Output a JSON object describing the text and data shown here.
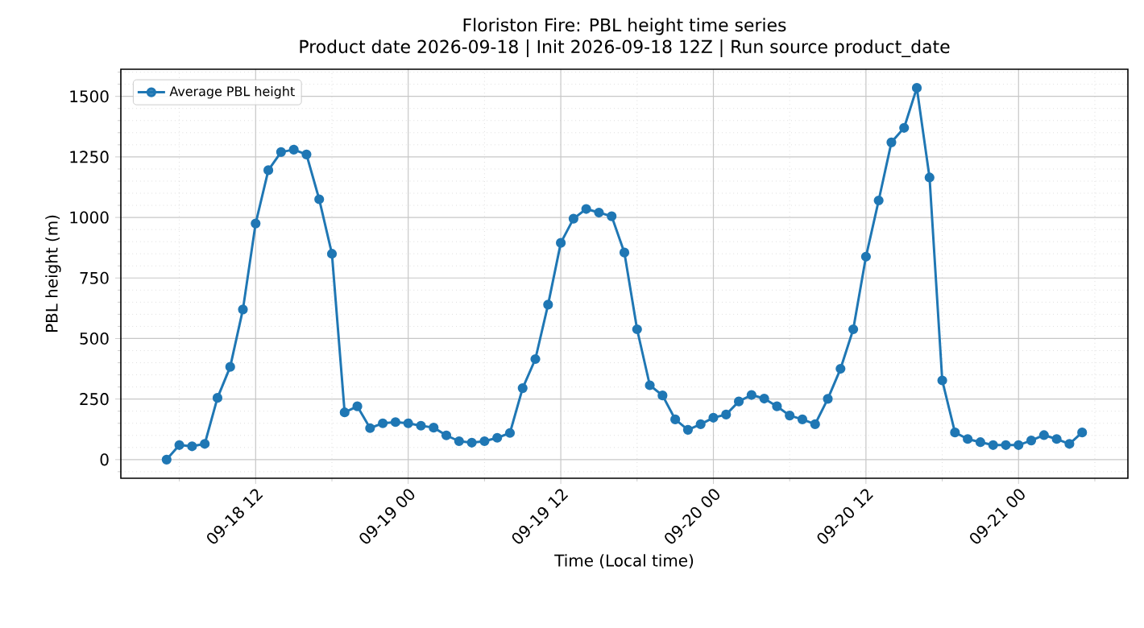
{
  "chart_data": {
    "type": "line",
    "title": "Floriston Fire: PBL height time series",
    "subtitle": "Product date 2026-09-18 | Init 2026-09-18 12Z | Run source product_date",
    "xlabel": "Time (Local time)",
    "ylabel": "PBL height (m)",
    "x": [
      "2026-09-18T05:00",
      "2026-09-18T06:00",
      "2026-09-18T07:00",
      "2026-09-18T08:00",
      "2026-09-18T09:00",
      "2026-09-18T10:00",
      "2026-09-18T11:00",
      "2026-09-18T12:00",
      "2026-09-18T13:00",
      "2026-09-18T14:00",
      "2026-09-18T15:00",
      "2026-09-18T16:00",
      "2026-09-18T17:00",
      "2026-09-18T18:00",
      "2026-09-18T19:00",
      "2026-09-18T20:00",
      "2026-09-18T21:00",
      "2026-09-18T22:00",
      "2026-09-18T23:00",
      "2026-09-19T00:00",
      "2026-09-19T01:00",
      "2026-09-19T02:00",
      "2026-09-19T03:00",
      "2026-09-19T04:00",
      "2026-09-19T05:00",
      "2026-09-19T06:00",
      "2026-09-19T07:00",
      "2026-09-19T08:00",
      "2026-09-19T09:00",
      "2026-09-19T10:00",
      "2026-09-19T11:00",
      "2026-09-19T12:00",
      "2026-09-19T13:00",
      "2026-09-19T14:00",
      "2026-09-19T15:00",
      "2026-09-19T16:00",
      "2026-09-19T17:00",
      "2026-09-19T18:00",
      "2026-09-19T19:00",
      "2026-09-19T20:00",
      "2026-09-19T21:00",
      "2026-09-19T22:00",
      "2026-09-19T23:00",
      "2026-09-20T00:00",
      "2026-09-20T01:00",
      "2026-09-20T02:00",
      "2026-09-20T03:00",
      "2026-09-20T04:00",
      "2026-09-20T05:00",
      "2026-09-20T06:00",
      "2026-09-20T07:00",
      "2026-09-20T08:00",
      "2026-09-20T09:00",
      "2026-09-20T10:00",
      "2026-09-20T11:00",
      "2026-09-20T12:00",
      "2026-09-20T13:00",
      "2026-09-20T14:00",
      "2026-09-20T15:00",
      "2026-09-20T16:00",
      "2026-09-20T17:00",
      "2026-09-20T18:00",
      "2026-09-20T19:00",
      "2026-09-20T20:00",
      "2026-09-20T21:00",
      "2026-09-20T22:00",
      "2026-09-20T23:00",
      "2026-09-21T00:00",
      "2026-09-21T01:00",
      "2026-09-21T02:00",
      "2026-09-21T03:00",
      "2026-09-21T04:00",
      "2026-09-21T05:00"
    ],
    "series": [
      {
        "name": "Average PBL height",
        "color": "#1f77b4",
        "values": [
          0,
          60,
          55,
          65,
          255,
          383,
          620,
          975,
          1195,
          1270,
          1280,
          1260,
          1075,
          850,
          195,
          220,
          130,
          150,
          155,
          150,
          140,
          132,
          100,
          76,
          70,
          76,
          90,
          110,
          295,
          415,
          640,
          895,
          995,
          1035,
          1020,
          1005,
          855,
          538,
          307,
          265,
          166,
          123,
          146,
          173,
          186,
          240,
          267,
          252,
          220,
          182,
          166,
          146,
          251,
          375,
          538,
          838,
          1070,
          1310,
          1370,
          1535,
          1165,
          327,
          112,
          85,
          72,
          60,
          60,
          60,
          79,
          101,
          85,
          65,
          112
        ]
      }
    ],
    "xlim": [
      "2026-09-18T01:24",
      "2026-09-21T08:36"
    ],
    "xticks": [
      {
        "value": "2026-09-18T06:00",
        "label": null
      },
      {
        "value": "2026-09-18T12:00",
        "label": "09-18 12"
      },
      {
        "value": "2026-09-18T18:00",
        "label": null
      },
      {
        "value": "2026-09-19T00:00",
        "label": "09-19 00"
      },
      {
        "value": "2026-09-19T06:00",
        "label": null
      },
      {
        "value": "2026-09-19T12:00",
        "label": "09-19 12"
      },
      {
        "value": "2026-09-19T18:00",
        "label": null
      },
      {
        "value": "2026-09-20T00:00",
        "label": "09-20 00"
      },
      {
        "value": "2026-09-20T06:00",
        "label": null
      },
      {
        "value": "2026-09-20T12:00",
        "label": "09-20 12"
      },
      {
        "value": "2026-09-20T18:00",
        "label": null
      },
      {
        "value": "2026-09-21T00:00",
        "label": "09-21 00"
      },
      {
        "value": "2026-09-21T06:00",
        "label": null
      }
    ],
    "ylim": [
      -77,
      1612
    ],
    "yticks": [
      {
        "value": -50,
        "label": null
      },
      0,
      {
        "value": 50,
        "label": null
      },
      {
        "value": 100,
        "label": null
      },
      {
        "value": 150,
        "label": null
      },
      {
        "value": 200,
        "label": null
      },
      250,
      {
        "value": 300,
        "label": null
      },
      {
        "value": 350,
        "label": null
      },
      {
        "value": 400,
        "label": null
      },
      {
        "value": 450,
        "label": null
      },
      500,
      {
        "value": 550,
        "label": null
      },
      {
        "value": 600,
        "label": null
      },
      {
        "value": 650,
        "label": null
      },
      {
        "value": 700,
        "label": null
      },
      750,
      {
        "value": 800,
        "label": null
      },
      {
        "value": 850,
        "label": null
      },
      {
        "value": 900,
        "label": null
      },
      {
        "value": 950,
        "label": null
      },
      1000,
      {
        "value": 1050,
        "label": null
      },
      {
        "value": 1100,
        "label": null
      },
      {
        "value": 1150,
        "label": null
      },
      {
        "value": 1200,
        "label": null
      },
      1250,
      {
        "value": 1300,
        "label": null
      },
      {
        "value": 1350,
        "label": null
      },
      {
        "value": 1400,
        "label": null
      },
      {
        "value": 1450,
        "label": null
      },
      1500,
      {
        "value": 1550,
        "label": null
      },
      {
        "value": 1600,
        "label": null
      }
    ],
    "grid": true,
    "legend": "top left",
    "marker": "circle",
    "line_style": "solid"
  }
}
